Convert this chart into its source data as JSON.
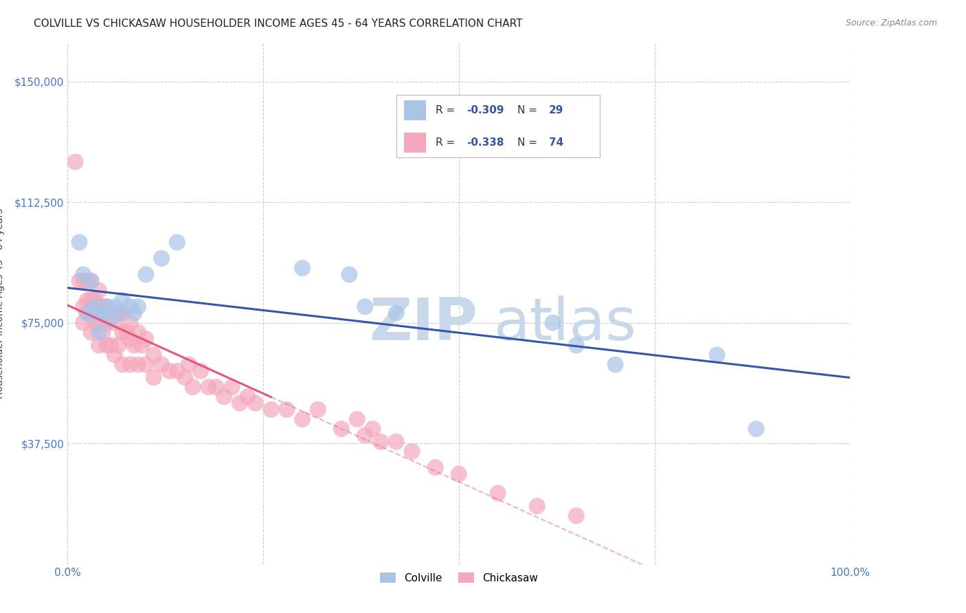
{
  "title": "COLVILLE VS CHICKASAW HOUSEHOLDER INCOME AGES 45 - 64 YEARS CORRELATION CHART",
  "source": "Source: ZipAtlas.com",
  "ylabel": "Householder Income Ages 45 - 64 years",
  "ytick_labels": [
    "",
    "$37,500",
    "$75,000",
    "$112,500",
    "$150,000"
  ],
  "ytick_values": [
    0,
    37500,
    75000,
    112500,
    150000
  ],
  "ylim": [
    0,
    162000
  ],
  "xlim": [
    0.0,
    1.0
  ],
  "colville_color": "#aac4e8",
  "chickasaw_color": "#f5a8bc",
  "colville_line_color": "#3355aa",
  "chickasaw_line_color": "#e8557a",
  "background_color": "#ffffff",
  "grid_color": "#cccccc",
  "watermark": "ZIPatlas",
  "watermark_color": "#c8d8ea",
  "colville_x": [
    0.015,
    0.02,
    0.025,
    0.03,
    0.03,
    0.035,
    0.04,
    0.04,
    0.045,
    0.05,
    0.055,
    0.06,
    0.065,
    0.07,
    0.08,
    0.085,
    0.09,
    0.1,
    0.12,
    0.14,
    0.3,
    0.36,
    0.38,
    0.42,
    0.62,
    0.65,
    0.7,
    0.83,
    0.88
  ],
  "colville_y": [
    100000,
    90000,
    78000,
    88000,
    78000,
    80000,
    78000,
    72000,
    78000,
    80000,
    76000,
    80000,
    78000,
    82000,
    80000,
    78000,
    80000,
    90000,
    95000,
    100000,
    92000,
    90000,
    80000,
    78000,
    75000,
    68000,
    62000,
    65000,
    42000
  ],
  "chickasaw_x": [
    0.01,
    0.015,
    0.02,
    0.02,
    0.02,
    0.025,
    0.025,
    0.025,
    0.03,
    0.03,
    0.03,
    0.03,
    0.035,
    0.035,
    0.04,
    0.04,
    0.04,
    0.04,
    0.045,
    0.045,
    0.05,
    0.05,
    0.05,
    0.055,
    0.055,
    0.06,
    0.06,
    0.065,
    0.065,
    0.07,
    0.07,
    0.07,
    0.075,
    0.08,
    0.08,
    0.08,
    0.085,
    0.09,
    0.09,
    0.095,
    0.1,
    0.1,
    0.11,
    0.11,
    0.12,
    0.13,
    0.14,
    0.15,
    0.155,
    0.16,
    0.17,
    0.18,
    0.19,
    0.2,
    0.21,
    0.22,
    0.23,
    0.24,
    0.26,
    0.28,
    0.3,
    0.32,
    0.35,
    0.37,
    0.38,
    0.39,
    0.4,
    0.42,
    0.44,
    0.47,
    0.5,
    0.55,
    0.6,
    0.65
  ],
  "chickasaw_y": [
    125000,
    88000,
    88000,
    80000,
    75000,
    88000,
    82000,
    78000,
    88000,
    82000,
    78000,
    72000,
    82000,
    75000,
    85000,
    80000,
    75000,
    68000,
    80000,
    72000,
    80000,
    75000,
    68000,
    78000,
    68000,
    75000,
    65000,
    78000,
    68000,
    78000,
    72000,
    62000,
    72000,
    75000,
    70000,
    62000,
    68000,
    72000,
    62000,
    68000,
    70000,
    62000,
    65000,
    58000,
    62000,
    60000,
    60000,
    58000,
    62000,
    55000,
    60000,
    55000,
    55000,
    52000,
    55000,
    50000,
    52000,
    50000,
    48000,
    48000,
    45000,
    48000,
    42000,
    45000,
    40000,
    42000,
    38000,
    38000,
    35000,
    30000,
    28000,
    22000,
    18000,
    15000
  ]
}
